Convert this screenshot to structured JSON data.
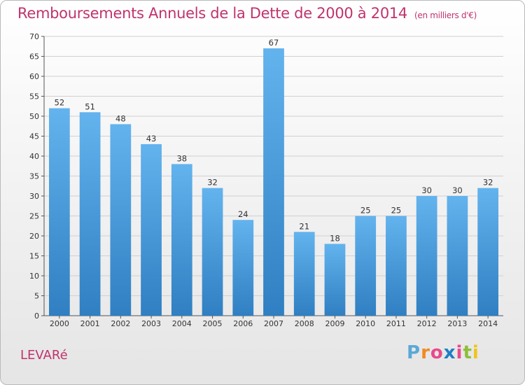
{
  "header": {
    "title": "Remboursements Annuels de la Dette de 2000 à 2014",
    "unit": "(en milliers d'€)"
  },
  "commune": "LEVARé",
  "logo": {
    "text": "Proxiti",
    "letters": [
      {
        "ch": "P",
        "color": "#5aa9d6"
      },
      {
        "ch": "r",
        "color": "#f08a24"
      },
      {
        "ch": "o",
        "color": "#e84a8a"
      },
      {
        "ch": "x",
        "color": "#1d7fc4"
      },
      {
        "ch": "i",
        "color": "#e84a8a"
      },
      {
        "ch": "t",
        "color": "#8dbf3a"
      },
      {
        "ch": "i",
        "color": "#f0c419"
      }
    ]
  },
  "colors": {
    "bar_top": "#63b3ee",
    "bar_bottom": "#2f7fc2",
    "title": "#c0336d",
    "grid": "#d0d0d0"
  },
  "chart_data": {
    "type": "bar",
    "categories": [
      "2000",
      "2001",
      "2002",
      "2003",
      "2004",
      "2005",
      "2006",
      "2007",
      "2008",
      "2009",
      "2010",
      "2011",
      "2012",
      "2013",
      "2014"
    ],
    "values": [
      52,
      51,
      48,
      43,
      38,
      32,
      24,
      67,
      21,
      18,
      25,
      25,
      30,
      30,
      32
    ],
    "ylim": [
      0,
      70
    ],
    "yticks": [
      0,
      5,
      10,
      15,
      20,
      25,
      30,
      35,
      40,
      45,
      50,
      55,
      60,
      65,
      70
    ],
    "grid": true,
    "data_labels": true
  }
}
